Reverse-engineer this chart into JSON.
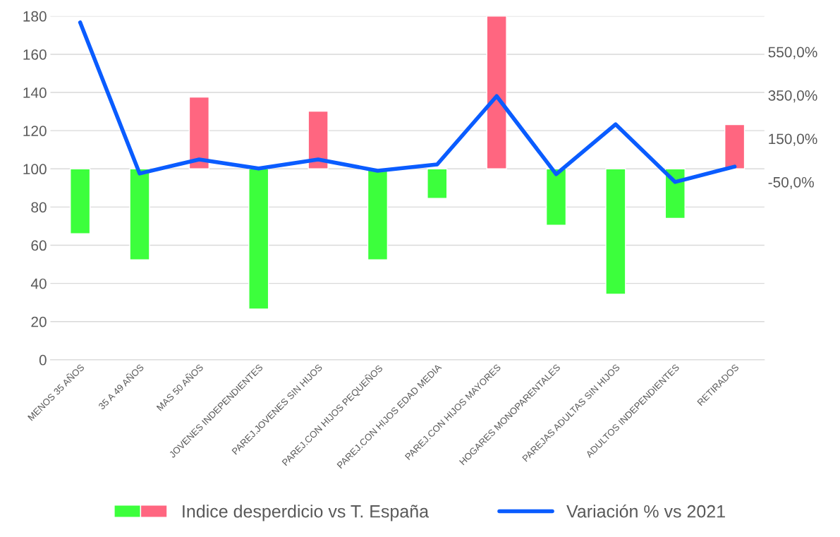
{
  "chart_data": {
    "type": "bar",
    "categories": [
      "MENOS 35 AÑOS",
      "35 A 49 AÑOS",
      "MAS 50 AÑOS",
      "JOVENES INDEPENDIENTES",
      "PAREJ.JOVENES SIN HIJOS",
      "PAREJ.CON HIJOS PEQUEÑOS",
      "PAREJ.CON HIJOS EDAD MEDIA",
      "PAREJ.CON HIJOS MAYORES",
      "HOGARES MONOPARENTALES",
      "PAREJAS ADULTAS SIN HIJOS",
      "ADULTOS INDEPENDIENTES",
      "RETIRADOS"
    ],
    "series": [
      {
        "name": "Indice desperdicio vs T. España",
        "base": [
          100,
          100,
          100,
          100,
          100,
          100,
          100,
          100,
          100,
          100,
          100,
          100
        ],
        "values": [
          -34,
          -47.6,
          37.6,
          -73.4,
          30.2,
          -47.6,
          -15.5,
          80,
          -29.5,
          -65.7,
          -25.9,
          23.2
        ],
        "colors": [
          "#3cff3c",
          "#3cff3c",
          "#ff6680",
          "#3cff3c",
          "#ff6680",
          "#3cff3c",
          "#3cff3c",
          "#ff6680",
          "#3cff3c",
          "#3cff3c",
          "#3cff3c",
          "#ff6680"
        ]
      },
      {
        "name": "Variación % vs 2021",
        "type": "line",
        "axis": "y2",
        "color": "#0a5cff",
        "values": [
          686,
          -11,
          54,
          12,
          54,
          2,
          31,
          346,
          -14,
          216,
          -50,
          21
        ]
      }
    ],
    "ylim": [
      0,
      180
    ],
    "yticks": [
      0,
      20,
      40,
      60,
      80,
      100,
      120,
      140,
      160,
      180
    ],
    "y2lim": [
      -870,
      715
    ],
    "y2ticks": [
      {
        "value": -50,
        "label": "-50,0%"
      },
      {
        "value": 150,
        "label": "150,0%"
      },
      {
        "value": 350,
        "label": "350,0%"
      },
      {
        "value": 550,
        "label": "550,0%"
      }
    ],
    "grid": "y",
    "legend": "bottom",
    "marker": "none",
    "line_style": "solid"
  }
}
